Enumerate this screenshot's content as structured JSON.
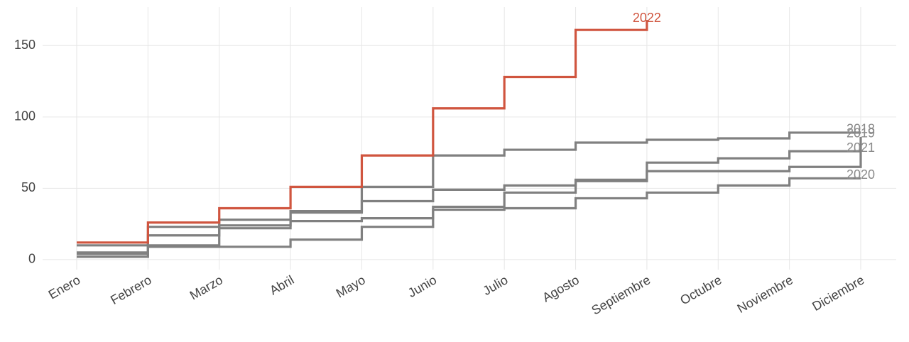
{
  "chart_data": {
    "type": "step",
    "categories": [
      "Enero",
      "Febrero",
      "Marzo",
      "Abril",
      "Mayo",
      "Junio",
      "Julio",
      "Agosto",
      "Septiembre",
      "Octubre",
      "Noviembre",
      "Diciembre"
    ],
    "series": [
      {
        "name": "2018",
        "color": "#808080",
        "values": [
          10,
          23,
          28,
          34,
          51,
          73,
          77,
          82,
          84,
          85,
          89,
          89
        ]
      },
      {
        "name": "2019",
        "color": "#808080",
        "values": [
          5,
          17,
          24,
          27,
          29,
          37,
          47,
          55,
          62,
          62,
          65,
          86
        ]
      },
      {
        "name": "2021",
        "color": "#808080",
        "values": [
          4,
          10,
          22,
          33,
          41,
          49,
          52,
          56,
          68,
          71,
          76,
          76
        ]
      },
      {
        "name": "2020",
        "color": "#808080",
        "values": [
          2,
          9,
          9,
          14,
          23,
          35,
          36,
          43,
          47,
          52,
          57,
          57
        ]
      },
      {
        "name": "2022",
        "color": "#d0553f",
        "values": [
          12,
          26,
          36,
          51,
          73,
          106,
          128,
          161,
          168,
          null,
          null,
          null
        ]
      }
    ],
    "ylim": [
      -7,
      177
    ],
    "yticks": [
      0,
      50,
      100,
      150
    ],
    "grid": true
  }
}
